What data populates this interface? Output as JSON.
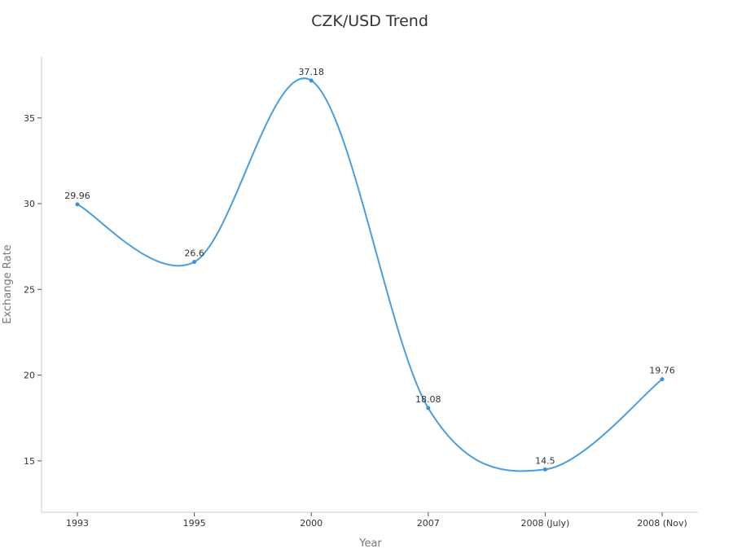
{
  "chart_data": {
    "type": "line",
    "title": "CZK/USD Trend",
    "xlabel": "Year",
    "ylabel": "Exchange Rate",
    "categories": [
      "1993",
      "1995",
      "2000",
      "2007",
      "2008 (July)",
      "2008 (Nov)"
    ],
    "series": [
      {
        "values": [
          29.96,
          26.6,
          37.18,
          18.08,
          14.5,
          19.76
        ]
      }
    ],
    "yticks": [
      15,
      20,
      25,
      30,
      35
    ],
    "ylim": [
      12.0,
      38.6
    ],
    "grid": false,
    "legend": "none",
    "line_color": "#4a9ee0",
    "point_color": "#3a8fd8",
    "axis_color": "#cccccc"
  }
}
